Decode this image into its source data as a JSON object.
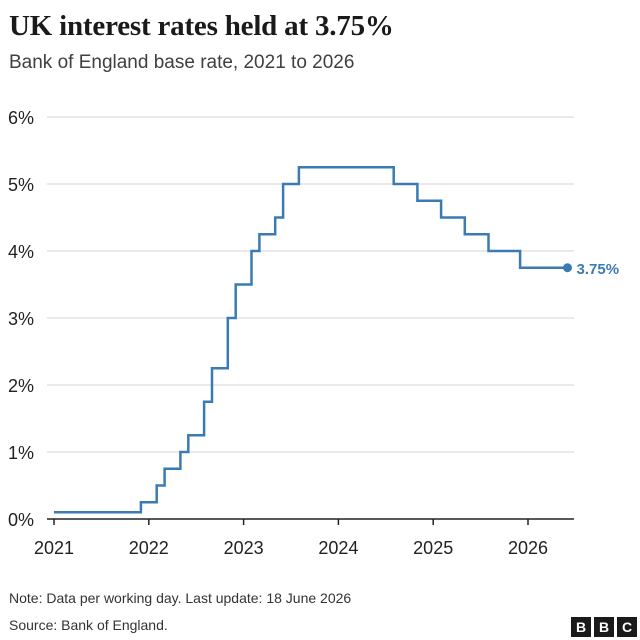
{
  "title": "UK interest rates held at 3.75%",
  "subtitle": "Bank of England base rate, 2021 to 2026",
  "note": "Note: Data per working day. Last update: 18 June 2026",
  "source": "Source: Bank of England.",
  "logo": [
    "B",
    "B",
    "C"
  ],
  "colors": {
    "line": "#3a7bb4",
    "grid": "#d4d4d4",
    "axis": "#222222"
  },
  "chart_data": {
    "type": "line",
    "step": "after",
    "title": "UK interest rates held at 3.75%",
    "subtitle": "Bank of England base rate, 2021 to 2026",
    "xlabel": "",
    "ylabel": "",
    "xlim": [
      2021.0,
      2026.5
    ],
    "ylim": [
      0,
      6
    ],
    "x_ticks": [
      2021,
      2022,
      2023,
      2024,
      2025,
      2026
    ],
    "x_tick_labels": [
      "2021",
      "2022",
      "2023",
      "2024",
      "2025",
      "2026"
    ],
    "y_ticks": [
      0,
      1,
      2,
      3,
      4,
      5,
      6
    ],
    "y_tick_labels": [
      "0%",
      "1%",
      "2%",
      "3%",
      "4%",
      "5%",
      "6%"
    ],
    "grid": "horizontal",
    "series": [
      {
        "x": [
          "2021-01",
          "2021-12",
          "2022-02",
          "2022-03",
          "2022-05",
          "2022-06",
          "2022-08",
          "2022-09",
          "2022-11",
          "2022-12",
          "2023-02",
          "2023-03",
          "2023-05",
          "2023-06",
          "2023-08",
          "2024-08",
          "2024-11",
          "2025-02",
          "2025-05",
          "2025-08",
          "2025-12",
          "2026-06"
        ],
        "y": [
          0.1,
          0.25,
          0.5,
          0.75,
          1.0,
          1.25,
          1.75,
          2.25,
          3.0,
          3.5,
          4.0,
          4.25,
          4.5,
          5.0,
          5.25,
          5.0,
          4.75,
          4.5,
          4.25,
          4.0,
          3.75,
          3.75
        ]
      }
    ],
    "end_label": "3.75%"
  }
}
